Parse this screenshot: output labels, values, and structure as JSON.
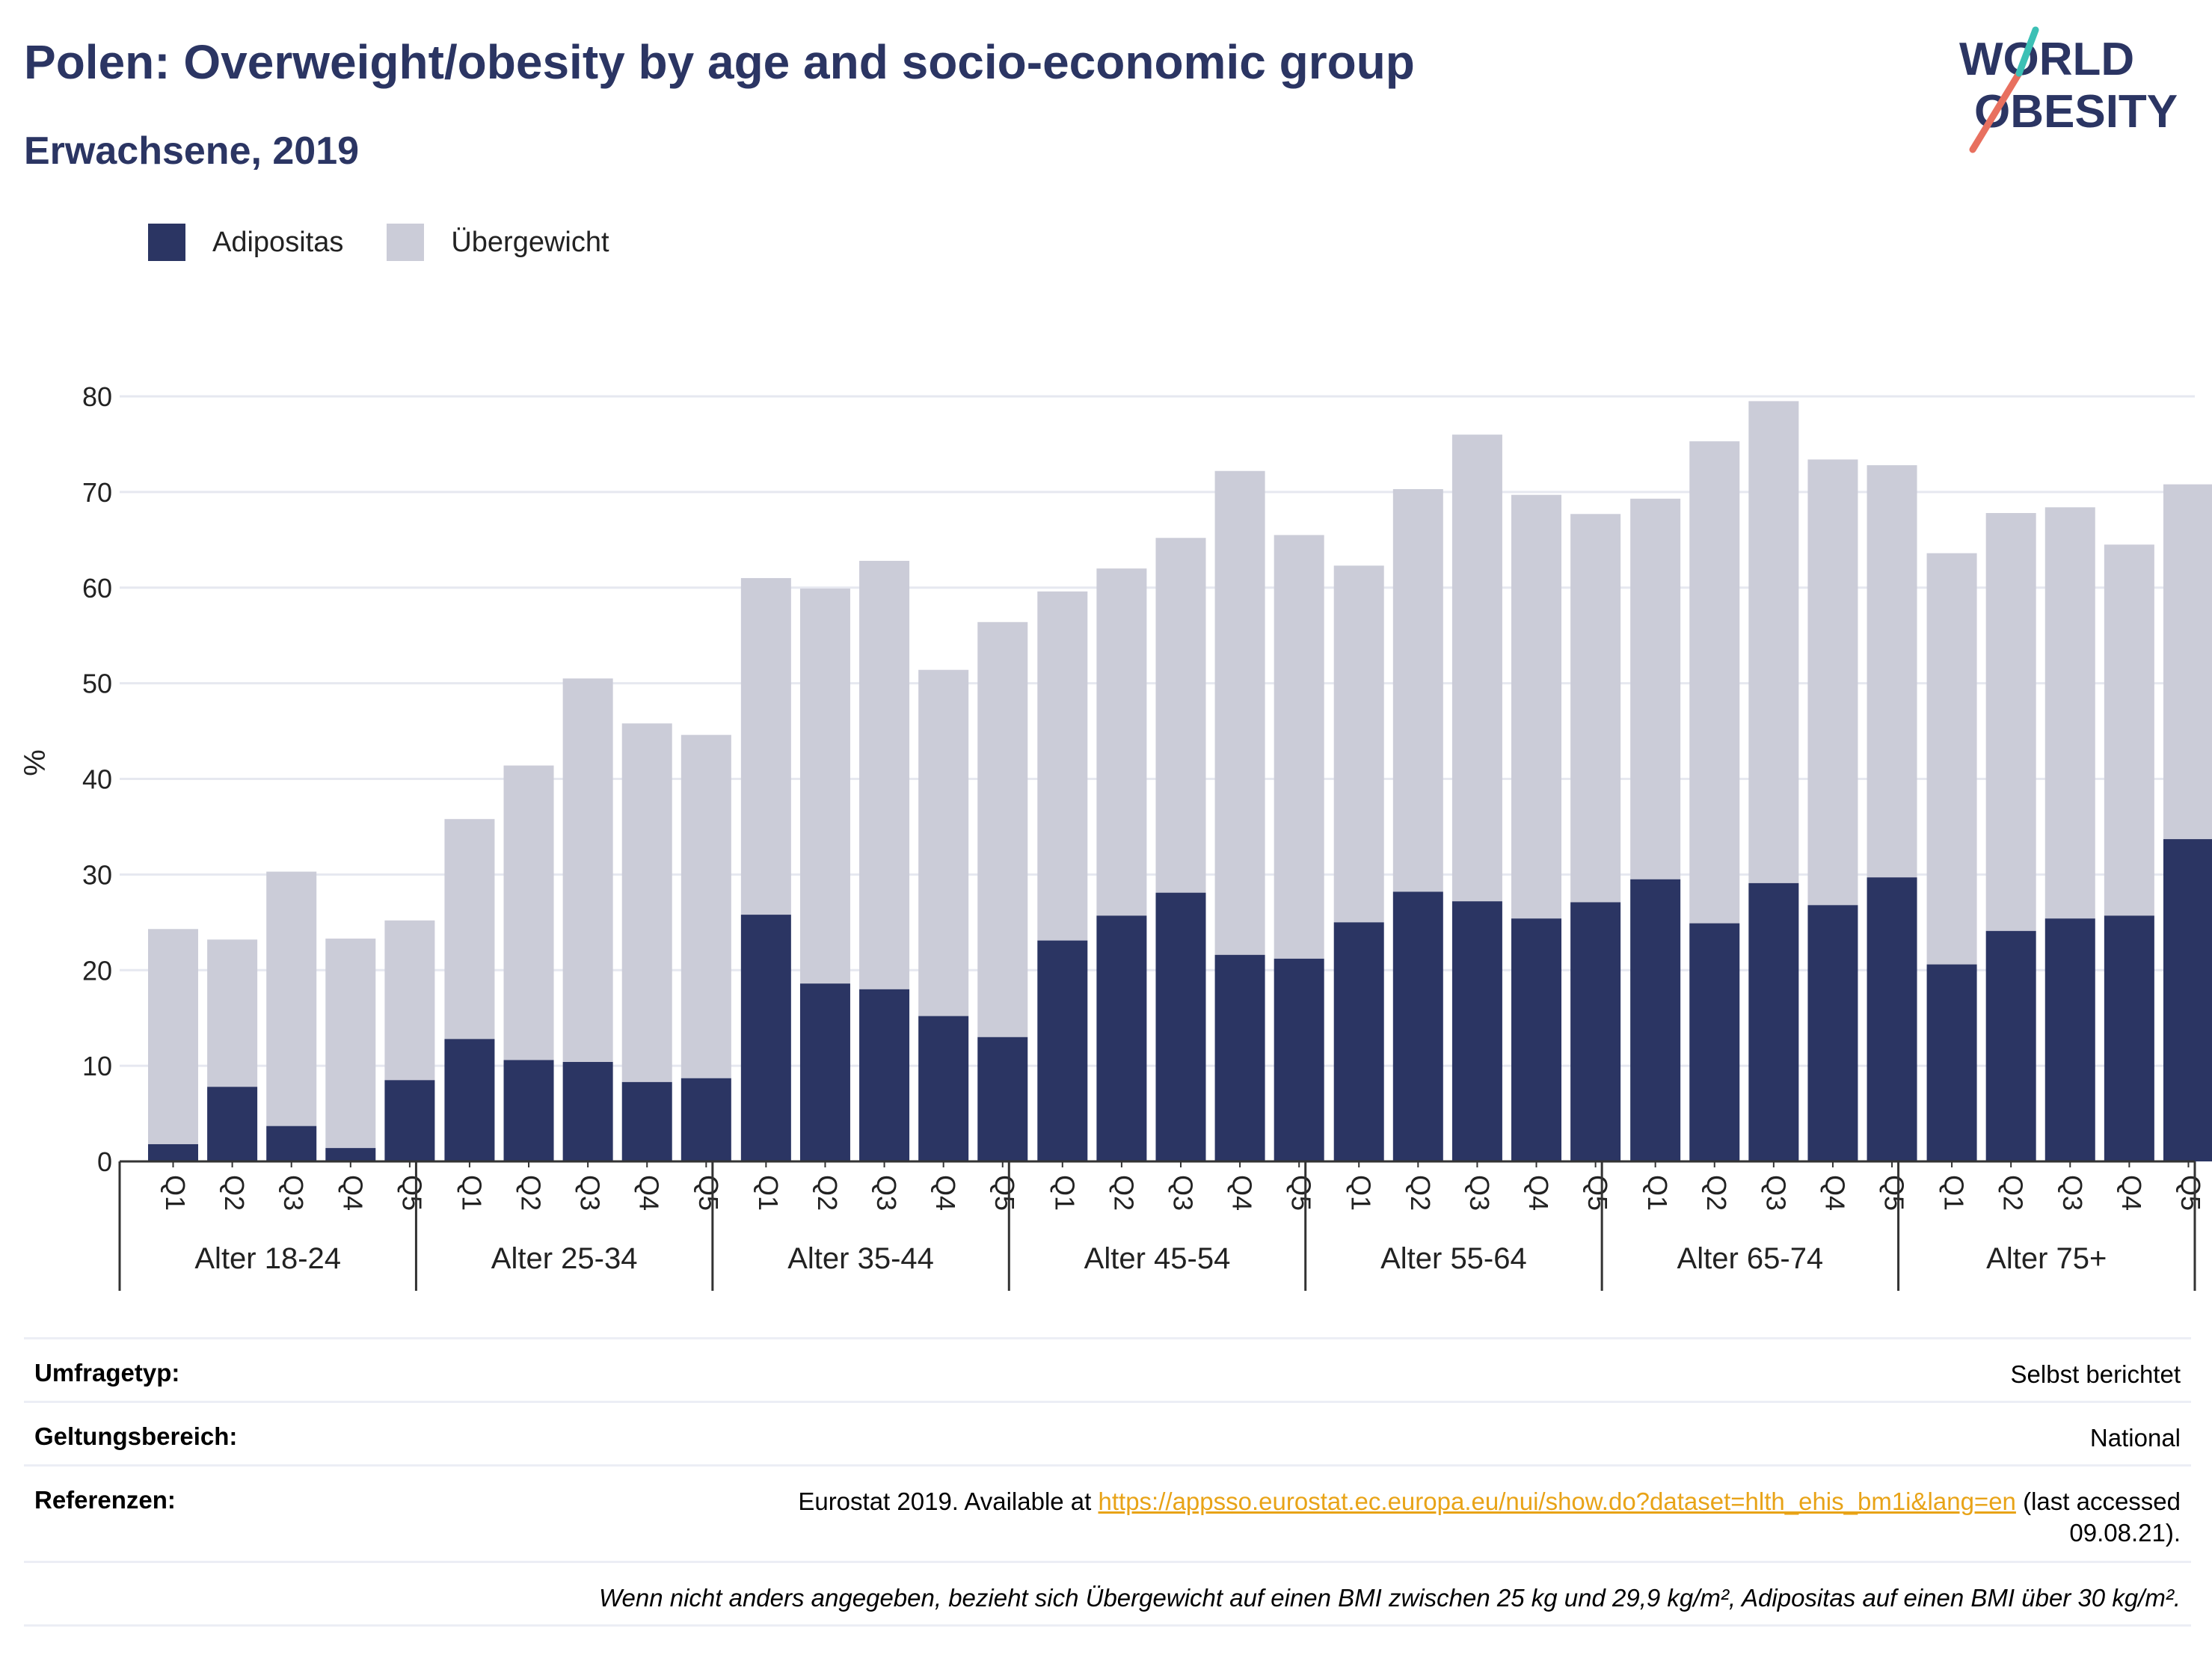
{
  "header": {
    "title": "Polen: Overweight/obesity by age and socio-economic group",
    "subtitle": "Erwachsene, 2019"
  },
  "logo": {
    "line1": "WORLD",
    "line2": "OBESITY"
  },
  "legend": [
    {
      "label": "Adipositas",
      "color": "#2b3563"
    },
    {
      "label": "Übergewicht",
      "color": "#cbccd8"
    }
  ],
  "colors": {
    "obesity": "#2b3563",
    "overweight": "#cbccd8",
    "grid": "#e6e8f0",
    "text": "#2b3563",
    "link": "#e8a317"
  },
  "chart_data": {
    "type": "bar",
    "stacked": true,
    "ylabel": "%",
    "ylim": [
      0,
      80
    ],
    "yticks": [
      0,
      10,
      20,
      30,
      40,
      50,
      60,
      70,
      80
    ],
    "grid": true,
    "legend_position": "top-left",
    "groups": [
      {
        "label": "Alter 18-24",
        "categories": [
          "Q1",
          "Q2",
          "Q3",
          "Q4",
          "Q5"
        ],
        "obesity": [
          1.8,
          7.8,
          3.7,
          1.4,
          8.5
        ],
        "total": [
          24.3,
          23.2,
          30.3,
          23.3,
          25.2
        ]
      },
      {
        "label": "Alter 25-34",
        "categories": [
          "Q1",
          "Q2",
          "Q3",
          "Q4",
          "Q5"
        ],
        "obesity": [
          12.8,
          10.6,
          10.4,
          8.3,
          8.7
        ],
        "total": [
          35.8,
          41.4,
          50.5,
          45.8,
          44.6
        ]
      },
      {
        "label": "Alter 35-44",
        "categories": [
          "Q1",
          "Q2",
          "Q3",
          "Q4",
          "Q5"
        ],
        "obesity": [
          25.8,
          18.6,
          18.0,
          15.2,
          13.0
        ],
        "total": [
          61.0,
          59.9,
          62.8,
          51.4,
          56.4
        ]
      },
      {
        "label": "Alter 45-54",
        "categories": [
          "Q1",
          "Q2",
          "Q3",
          "Q4",
          "Q5"
        ],
        "obesity": [
          23.1,
          25.7,
          28.1,
          21.6,
          21.2
        ],
        "total": [
          59.6,
          62.0,
          65.2,
          72.2,
          65.5
        ]
      },
      {
        "label": "Alter 55-64",
        "categories": [
          "Q1",
          "Q2",
          "Q3",
          "Q4",
          "Q5"
        ],
        "obesity": [
          25.0,
          28.2,
          27.2,
          25.4,
          27.1
        ],
        "total": [
          62.3,
          70.3,
          76.0,
          69.7,
          67.7
        ]
      },
      {
        "label": "Alter 65-74",
        "categories": [
          "Q1",
          "Q2",
          "Q3",
          "Q4",
          "Q5"
        ],
        "obesity": [
          29.5,
          24.9,
          29.1,
          26.8,
          29.7
        ],
        "total": [
          69.3,
          75.3,
          79.5,
          73.4,
          72.8
        ]
      },
      {
        "label": "Alter 75+",
        "categories": [
          "Q1",
          "Q2",
          "Q3",
          "Q4",
          "Q5"
        ],
        "obesity": [
          20.6,
          24.1,
          25.4,
          25.7,
          33.7
        ],
        "total": [
          63.6,
          67.8,
          68.4,
          64.5,
          70.8
        ]
      }
    ]
  },
  "info": {
    "survey_type": {
      "label": "Umfragetyp:",
      "value": "Selbst berichtet"
    },
    "coverage": {
      "label": "Geltungsbereich:",
      "value": "National"
    },
    "references": {
      "label": "Referenzen:",
      "prefix": "Eurostat 2019. Available at ",
      "link": "https://appsso.eurostat.ec.europa.eu/nui/show.do?dataset=hlth_ehis_bm1i&lang=en",
      "suffix": " (last accessed 09.08.21)."
    },
    "note": "Wenn nicht anders angegeben, bezieht sich Übergewicht auf einen BMI zwischen 25 kg und 29,9 kg/m², Adipositas auf einen BMI über 30 kg/m²."
  }
}
